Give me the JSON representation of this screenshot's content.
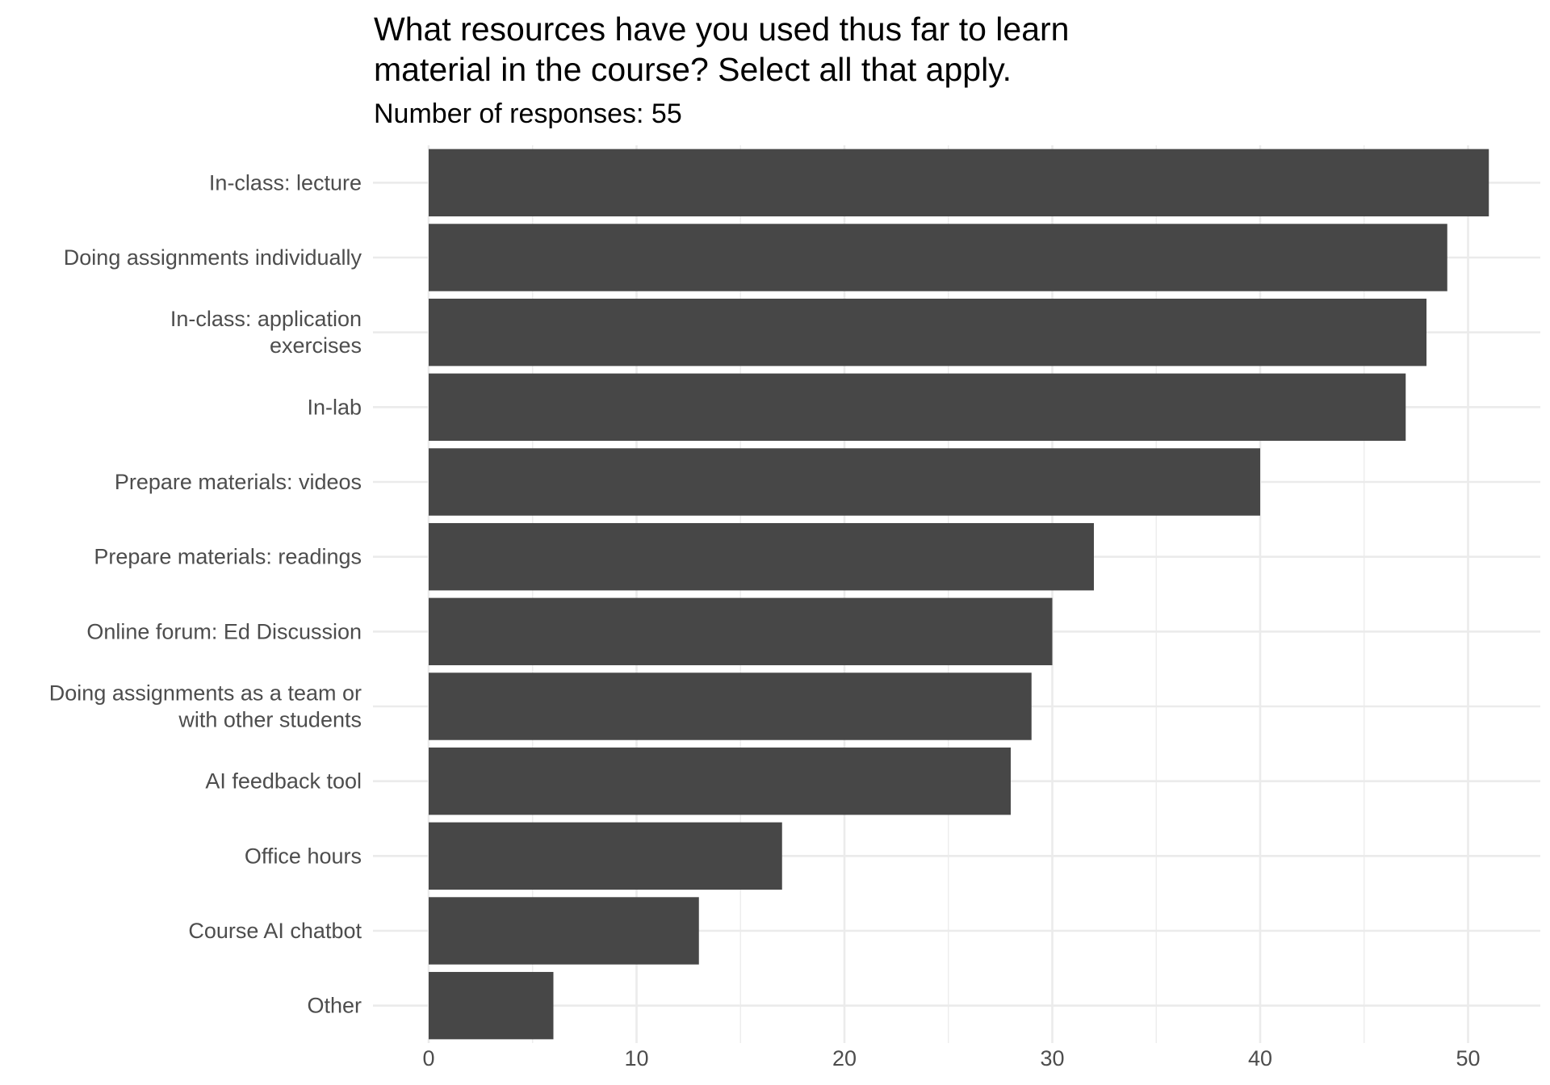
{
  "chart_data": {
    "type": "bar",
    "orientation": "horizontal",
    "title_lines": [
      "What resources have you used thus far to learn",
      "material in the course? Select all that apply."
    ],
    "subtitle": "Number of responses: 55",
    "categories": [
      [
        "In-class: lecture"
      ],
      [
        "Doing assignments individually"
      ],
      [
        "In-class: application",
        "exercises"
      ],
      [
        "In-lab"
      ],
      [
        "Prepare materials: videos"
      ],
      [
        "Prepare materials: readings"
      ],
      [
        "Online forum: Ed Discussion"
      ],
      [
        "Doing assignments as a team or",
        "with other students"
      ],
      [
        "AI feedback tool"
      ],
      [
        "Office hours"
      ],
      [
        "Course AI chatbot"
      ],
      [
        "Other"
      ]
    ],
    "values": [
      51,
      49,
      48,
      47,
      40,
      32,
      30,
      29,
      28,
      17,
      13,
      6
    ],
    "xlim": [
      0,
      53
    ],
    "xticks": [
      0,
      10,
      20,
      30,
      40,
      50
    ],
    "xlabel": "",
    "ylabel": "",
    "grid": true,
    "bar_color": "#474747",
    "grid_color": "#ebebeb",
    "label_color": "#4d4d4d"
  }
}
